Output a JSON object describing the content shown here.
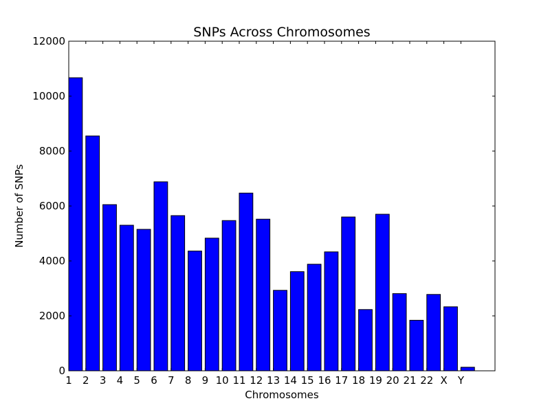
{
  "chart_data": {
    "type": "bar",
    "title": "SNPs Across Chromosomes",
    "xlabel": "Chromosomes",
    "ylabel": "Number of SNPs",
    "categories": [
      "1",
      "2",
      "3",
      "4",
      "5",
      "6",
      "7",
      "8",
      "9",
      "10",
      "11",
      "12",
      "13",
      "14",
      "15",
      "16",
      "17",
      "18",
      "19",
      "20",
      "21",
      "22",
      "X",
      "Y"
    ],
    "values": [
      10670,
      8550,
      6050,
      5300,
      5150,
      6880,
      5650,
      4360,
      4830,
      5470,
      6470,
      5520,
      2930,
      3610,
      3880,
      4330,
      5600,
      2230,
      5700,
      2810,
      1840,
      2780,
      2330,
      130
    ],
    "ylim": [
      0,
      12000
    ],
    "yticks": [
      0,
      2000,
      4000,
      6000,
      8000,
      10000,
      12000
    ],
    "bar_color": "#0000ff",
    "grid": false,
    "legend": "none"
  }
}
